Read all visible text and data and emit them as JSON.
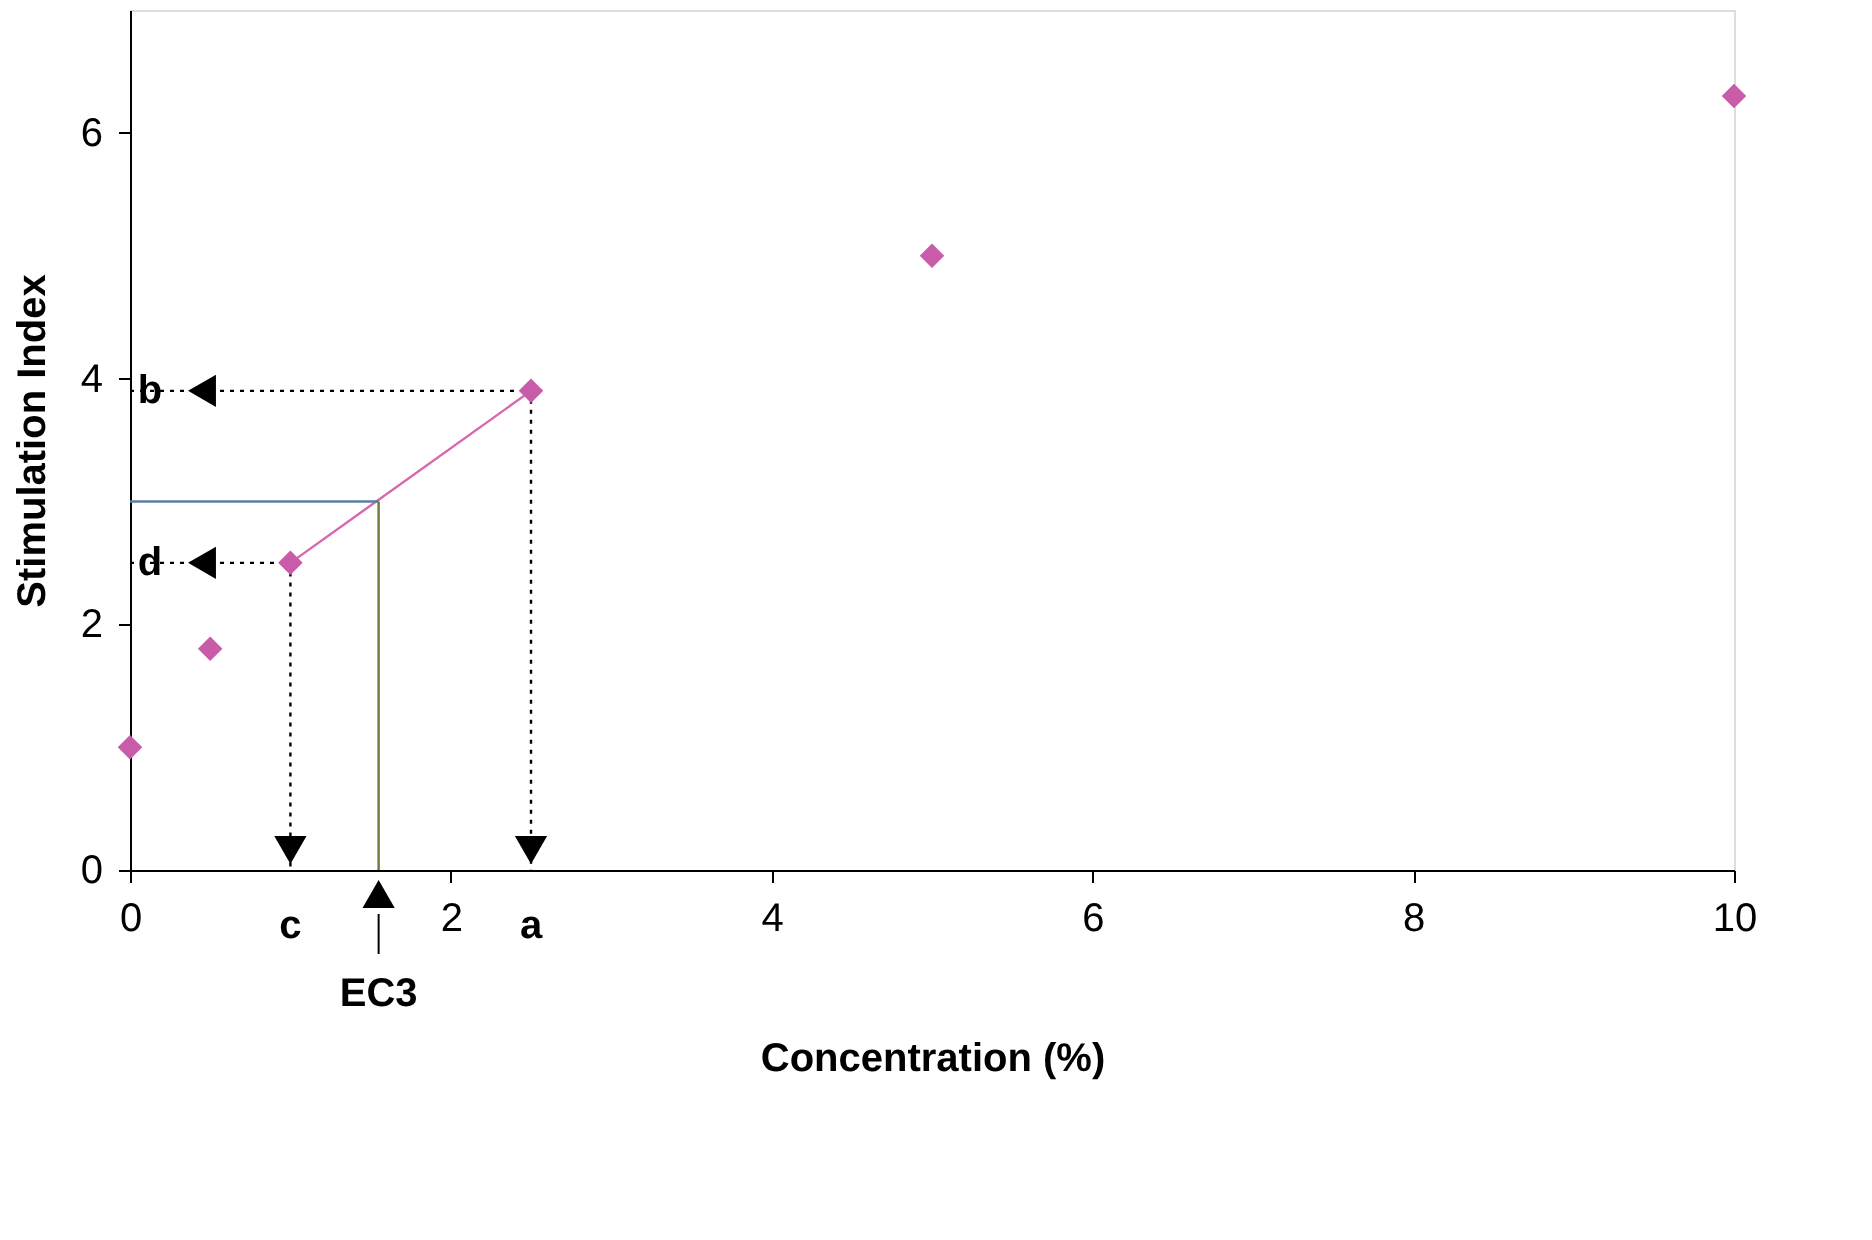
{
  "chart_data": {
    "type": "scatter",
    "xlabel": "Concentration (%)",
    "ylabel": "Stimulation  Index",
    "xlim": [
      0,
      10
    ],
    "ylim": [
      0,
      7
    ],
    "xticks": [
      0,
      2,
      4,
      6,
      8,
      10
    ],
    "yticks": [
      0,
      2,
      4,
      6
    ],
    "grid": false,
    "series": [
      {
        "marker": "diamond",
        "color": "#c85ca8",
        "x": [
          0,
          0.5,
          1,
          2.5,
          5,
          10
        ],
        "values": [
          1.0,
          1.8,
          2.5,
          3.9,
          5.0,
          6.3
        ]
      },
      {
        "type": "line",
        "color": "#d966b0",
        "line_style": "solid",
        "x": [
          1,
          2.5
        ],
        "values": [
          2.5,
          3.9
        ]
      },
      {
        "type": "line",
        "color": "#5b7ea6",
        "line_style": "solid",
        "x": [
          0,
          1.55
        ],
        "values": [
          3,
          3
        ]
      },
      {
        "type": "line",
        "color": "#6b7a3a",
        "line_style": "solid",
        "x": [
          1.55,
          1.55
        ],
        "values": [
          3,
          0
        ]
      },
      {
        "type": "line",
        "color": "#000000",
        "line_style": "dotted",
        "x": [
          0,
          2.5,
          2.5
        ],
        "values": [
          3.9,
          3.9,
          0
        ]
      },
      {
        "type": "line",
        "color": "#000000",
        "line_style": "dotted",
        "x": [
          0,
          1,
          1
        ],
        "values": [
          2.5,
          2.5,
          0
        ]
      }
    ],
    "annotations": [
      {
        "text": "a",
        "x": 2.5,
        "y": 0
      },
      {
        "text": "b",
        "x": 0,
        "y": 3.9
      },
      {
        "text": "c",
        "x": 1,
        "y": 0
      },
      {
        "text": "d",
        "x": 0,
        "y": 2.5
      },
      {
        "text": "EC3",
        "x": 1.55,
        "y": 0
      }
    ]
  }
}
